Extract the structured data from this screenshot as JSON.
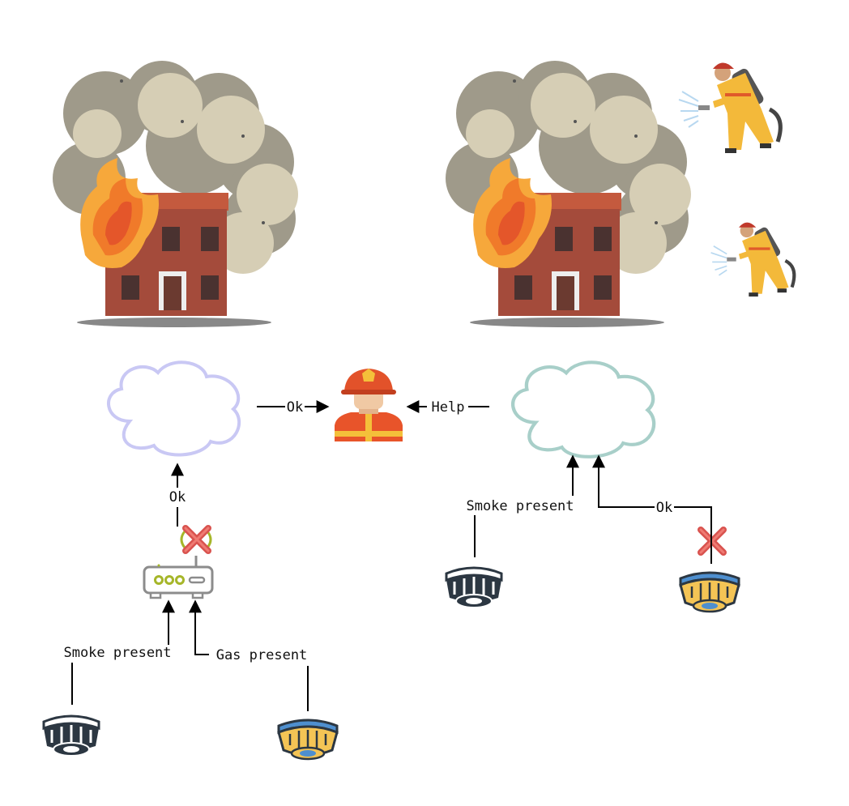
{
  "labels": {
    "ok_to_firefighter": "Ok",
    "help_to_firefighter": "Help",
    "ok_from_router": "Ok",
    "smoke_present_left": "Smoke present",
    "gas_present_left": "Gas present",
    "smoke_present_right": "Smoke present",
    "ok_from_gas_right": "Ok"
  },
  "colors": {
    "cloud_left": "#c9c8f4",
    "cloud_right": "#a8cfc9",
    "arrow": "#000000",
    "failure_x": "#d9534f",
    "router_led": "#a6b629",
    "smoke_detector": "#2c3742",
    "gas_detector_body": "#f4c455",
    "gas_detector_accent": "#4e8fcf",
    "fire_orange": "#f08030",
    "smoke_grey": "#a39f8e",
    "building_brick": "#a04a3a"
  },
  "icons": [
    "burning-house-icon",
    "firefighter-spraying-icon",
    "cloud-icon",
    "firefighter-avatar-icon",
    "router-icon",
    "failure-x-icon",
    "smoke-detector-icon",
    "gas-detector-icon"
  ]
}
